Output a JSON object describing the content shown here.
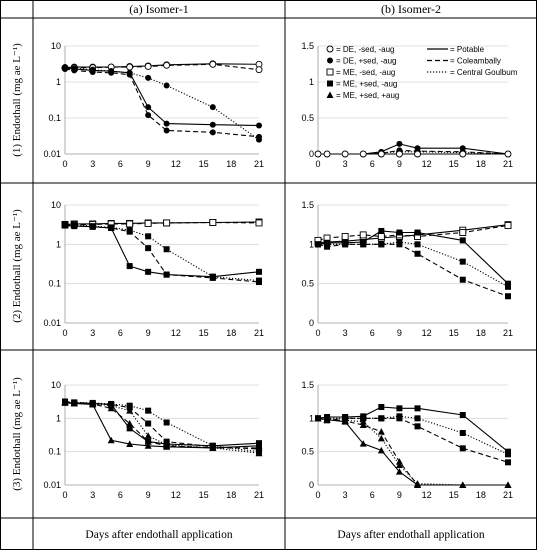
{
  "headers": {
    "col1": "(a)  Isomer-1",
    "col2": "(b)  Isomer-2"
  },
  "row_labels": [
    "(1) Endothall (mg ae L⁻¹)",
    "(2) Endothall (mg ae L⁻¹)",
    "(3) Endothall (mg ae L⁻¹)"
  ],
  "footer": {
    "col1": "Days after endothall application",
    "col2": "Days after endothall application"
  },
  "legend": {
    "markers": [
      {
        "symbol": "open-circle",
        "label": "= DE, -sed, -aug"
      },
      {
        "symbol": "filled-circle",
        "label": "= DE, +sed, -aug"
      },
      {
        "symbol": "open-square",
        "label": "= ME, -sed, -aug"
      },
      {
        "symbol": "filled-square",
        "label": "= ME, +sed, -aug"
      },
      {
        "symbol": "filled-triangle",
        "label": "= ME, +sed, +aug"
      }
    ],
    "lines": [
      {
        "style": "solid",
        "label": "= Potable"
      },
      {
        "style": "dashed",
        "label": "= Coleambally"
      },
      {
        "style": "dotted",
        "label": "= Central Goulbum"
      }
    ]
  },
  "chart_data": [
    {
      "type": "line",
      "panel": "1a",
      "yscale": "log",
      "xlim": [
        0,
        21
      ],
      "ylim": [
        0.01,
        10
      ],
      "xticks": [
        "0",
        "3",
        "6",
        "9",
        "12",
        "15",
        "18",
        "21"
      ],
      "yticks": [
        "0.01",
        "0.1",
        "1",
        "10"
      ],
      "series": [
        {
          "marker": "open-circle",
          "line": "solid",
          "x": [
            0,
            1,
            3,
            5,
            7,
            9,
            11,
            16,
            21
          ],
          "y": [
            2.5,
            2.6,
            2.6,
            2.6,
            2.7,
            2.8,
            3.0,
            3.2,
            3.1
          ]
        },
        {
          "marker": "open-circle",
          "line": "dashed",
          "x": [
            0,
            1,
            3,
            5,
            7,
            9,
            11,
            16,
            21
          ],
          "y": [
            2.4,
            2.5,
            2.5,
            2.6,
            2.6,
            2.7,
            2.9,
            3.1,
            2.2
          ]
        },
        {
          "marker": "filled-circle",
          "line": "solid",
          "x": [
            0,
            1,
            3,
            5,
            7,
            9,
            11,
            16,
            21
          ],
          "y": [
            2.4,
            2.3,
            2.1,
            2.0,
            1.8,
            0.2,
            0.07,
            0.065,
            0.062
          ]
        },
        {
          "marker": "filled-circle",
          "line": "dashed",
          "x": [
            0,
            1,
            3,
            5,
            7,
            9,
            11,
            16,
            21
          ],
          "y": [
            2.3,
            2.1,
            1.9,
            1.8,
            1.6,
            0.12,
            0.045,
            0.04,
            0.03
          ]
        },
        {
          "marker": "filled-circle",
          "line": "dotted",
          "x": [
            0,
            1,
            3,
            5,
            7,
            9,
            11,
            16,
            21
          ],
          "y": [
            2.6,
            2.4,
            2.2,
            2.0,
            1.8,
            1.3,
            0.8,
            0.2,
            0.025
          ]
        }
      ]
    },
    {
      "type": "line",
      "panel": "1b",
      "yscale": "linear",
      "xlim": [
        0,
        21
      ],
      "ylim": [
        0,
        1.5
      ],
      "xticks": [
        "0",
        "3",
        "6",
        "9",
        "12",
        "15",
        "18",
        "21"
      ],
      "yticks": [
        "0",
        "0.5",
        "1",
        "1.5"
      ],
      "series": [
        {
          "marker": "filled-circle",
          "line": "solid",
          "x": [
            0,
            1,
            3,
            5,
            7,
            9,
            11,
            16,
            21
          ],
          "y": [
            0,
            0,
            0,
            0,
            0.03,
            0.14,
            0.08,
            0.08,
            0
          ]
        },
        {
          "marker": "filled-circle",
          "line": "dashed",
          "x": [
            0,
            1,
            3,
            5,
            7,
            9,
            11,
            16,
            21
          ],
          "y": [
            0,
            0,
            0,
            0,
            0.01,
            0.05,
            0.04,
            0.03,
            0
          ]
        },
        {
          "marker": "filled-circle",
          "line": "dotted",
          "x": [
            0,
            1,
            3,
            5,
            7,
            9,
            11,
            16,
            21
          ],
          "y": [
            0,
            0,
            0,
            0,
            0.02,
            0.03,
            0.03,
            0.02,
            0
          ]
        },
        {
          "marker": "open-circle",
          "line": "solid",
          "x": [
            0,
            1,
            3,
            5,
            7,
            9,
            11,
            16,
            21
          ],
          "y": [
            0,
            0,
            0,
            0,
            0,
            0,
            0,
            0,
            0
          ]
        }
      ]
    },
    {
      "type": "line",
      "panel": "2a",
      "yscale": "log",
      "xlim": [
        0,
        21
      ],
      "ylim": [
        0.01,
        10
      ],
      "xticks": [
        "0",
        "3",
        "6",
        "9",
        "12",
        "15",
        "18",
        "21"
      ],
      "yticks": [
        "0.01",
        "0.1",
        "1",
        "10"
      ],
      "series": [
        {
          "marker": "open-square",
          "line": "solid",
          "x": [
            0,
            1,
            3,
            5,
            7,
            9,
            11,
            16,
            21
          ],
          "y": [
            3.2,
            3.3,
            3.3,
            3.4,
            3.4,
            3.5,
            3.5,
            3.6,
            3.7
          ]
        },
        {
          "marker": "open-square",
          "line": "dashed",
          "x": [
            0,
            1,
            3,
            5,
            7,
            9,
            11,
            16,
            21
          ],
          "y": [
            3.1,
            3.2,
            3.2,
            3.3,
            3.3,
            3.4,
            3.5,
            3.6,
            3.5
          ]
        },
        {
          "marker": "filled-square",
          "line": "solid",
          "x": [
            0,
            1,
            3,
            5,
            7,
            9,
            11,
            16,
            21
          ],
          "y": [
            3.0,
            2.9,
            2.8,
            2.6,
            0.28,
            0.2,
            0.17,
            0.15,
            0.2
          ]
        },
        {
          "marker": "filled-square",
          "line": "dashed",
          "x": [
            0,
            1,
            3,
            5,
            7,
            9,
            11,
            16,
            21
          ],
          "y": [
            3.1,
            3.0,
            2.8,
            2.6,
            2.1,
            0.8,
            0.17,
            0.14,
            0.11
          ]
        },
        {
          "marker": "filled-square",
          "line": "dotted",
          "x": [
            0,
            1,
            3,
            5,
            7,
            9,
            11,
            16,
            21
          ],
          "y": [
            3.2,
            3.1,
            2.9,
            2.7,
            2.3,
            1.6,
            0.75,
            0.15,
            0.12
          ]
        }
      ]
    },
    {
      "type": "line",
      "panel": "2b",
      "yscale": "linear",
      "xlim": [
        0,
        21
      ],
      "ylim": [
        0,
        1.5
      ],
      "xticks": [
        "0",
        "3",
        "6",
        "9",
        "12",
        "15",
        "18",
        "21"
      ],
      "yticks": [
        "0",
        "0.5",
        "1",
        "1.5"
      ],
      "series": [
        {
          "marker": "open-square",
          "line": "solid",
          "x": [
            0,
            1,
            3,
            5,
            7,
            9,
            11,
            16,
            21
          ],
          "y": [
            1.02,
            1.03,
            1.04,
            1.06,
            1.08,
            1.1,
            1.12,
            1.18,
            1.25
          ]
        },
        {
          "marker": "open-square",
          "line": "dashed",
          "x": [
            0,
            1,
            3,
            5,
            7,
            9,
            11,
            16,
            21
          ],
          "y": [
            1.05,
            1.08,
            1.1,
            1.12,
            1.1,
            1.12,
            1.1,
            1.15,
            1.24
          ]
        },
        {
          "marker": "filled-square",
          "line": "solid",
          "x": [
            0,
            1,
            3,
            5,
            7,
            9,
            11,
            16,
            21
          ],
          "y": [
            1.0,
            1.02,
            1.02,
            1.03,
            1.17,
            1.15,
            1.15,
            1.05,
            0.5
          ]
        },
        {
          "marker": "filled-square",
          "line": "dashed",
          "x": [
            0,
            1,
            3,
            5,
            7,
            9,
            11,
            16,
            21
          ],
          "y": [
            1.0,
            0.97,
            1.0,
            1.0,
            1.0,
            1.0,
            0.88,
            0.55,
            0.34
          ]
        },
        {
          "marker": "filled-square",
          "line": "dotted",
          "x": [
            0,
            1,
            3,
            5,
            7,
            9,
            11,
            16,
            21
          ],
          "y": [
            1.0,
            1.0,
            1.0,
            1.0,
            1.0,
            1.03,
            1.0,
            0.78,
            0.46
          ]
        }
      ]
    },
    {
      "type": "line",
      "panel": "3a",
      "yscale": "log",
      "xlim": [
        0,
        21
      ],
      "ylim": [
        0.01,
        10
      ],
      "xticks": [
        "0",
        "3",
        "6",
        "9",
        "12",
        "15",
        "18",
        "21"
      ],
      "yticks": [
        "0.01",
        "0.1",
        "1",
        "10"
      ],
      "series": [
        {
          "marker": "filled-square",
          "line": "solid",
          "x": [
            0,
            1,
            3,
            5,
            7,
            9,
            11,
            16,
            21
          ],
          "y": [
            3.0,
            2.9,
            2.8,
            2.6,
            0.5,
            0.2,
            0.17,
            0.15,
            0.18
          ]
        },
        {
          "marker": "filled-square",
          "line": "dashed",
          "x": [
            0,
            1,
            3,
            5,
            7,
            9,
            11,
            16,
            21
          ],
          "y": [
            3.1,
            3.0,
            2.8,
            2.6,
            2.1,
            0.7,
            0.2,
            0.14,
            0.12
          ]
        },
        {
          "marker": "filled-square",
          "line": "dotted",
          "x": [
            0,
            1,
            3,
            5,
            7,
            9,
            11,
            16,
            21
          ],
          "y": [
            3.2,
            3.0,
            2.9,
            2.7,
            2.4,
            1.7,
            0.75,
            0.15,
            0.1
          ]
        },
        {
          "marker": "filled-triangle",
          "line": "solid",
          "x": [
            0,
            1,
            3,
            5,
            7,
            9,
            11,
            16,
            21
          ],
          "y": [
            2.9,
            2.8,
            2.6,
            0.22,
            0.17,
            0.15,
            0.14,
            0.13,
            0.15
          ]
        },
        {
          "marker": "filled-triangle",
          "line": "dashed",
          "x": [
            0,
            1,
            3,
            5,
            7,
            9,
            11,
            16,
            21
          ],
          "y": [
            3.0,
            2.8,
            2.7,
            2.0,
            0.7,
            0.2,
            0.15,
            0.13,
            0.13
          ]
        },
        {
          "marker": "filled-triangle",
          "line": "dotted",
          "x": [
            0,
            1,
            3,
            5,
            7,
            9,
            11,
            16,
            21
          ],
          "y": [
            3.1,
            2.9,
            2.8,
            2.4,
            1.7,
            0.3,
            0.16,
            0.13,
            0.09
          ]
        }
      ]
    },
    {
      "type": "line",
      "panel": "3b",
      "yscale": "linear",
      "xlim": [
        0,
        21
      ],
      "ylim": [
        0,
        1.5
      ],
      "xticks": [
        "0",
        "3",
        "6",
        "9",
        "12",
        "15",
        "18",
        "21"
      ],
      "yticks": [
        "0",
        "0.5",
        "1",
        "1.5"
      ],
      "series": [
        {
          "marker": "filled-square",
          "line": "solid",
          "x": [
            0,
            1,
            3,
            5,
            7,
            9,
            11,
            16,
            21
          ],
          "y": [
            1.0,
            1.02,
            1.02,
            1.03,
            1.17,
            1.15,
            1.15,
            1.05,
            0.5
          ]
        },
        {
          "marker": "filled-square",
          "line": "dashed",
          "x": [
            0,
            1,
            3,
            5,
            7,
            9,
            11,
            16,
            21
          ],
          "y": [
            1.0,
            0.97,
            1.0,
            1.0,
            1.0,
            1.0,
            0.88,
            0.55,
            0.34
          ]
        },
        {
          "marker": "filled-square",
          "line": "dotted",
          "x": [
            0,
            1,
            3,
            5,
            7,
            9,
            11,
            16,
            21
          ],
          "y": [
            1.0,
            1.0,
            1.0,
            1.0,
            1.0,
            1.03,
            1.0,
            0.78,
            0.46
          ]
        },
        {
          "marker": "filled-triangle",
          "line": "solid",
          "x": [
            0,
            1,
            3,
            5,
            7,
            9,
            11,
            16,
            21
          ],
          "y": [
            1.0,
            0.98,
            0.95,
            0.62,
            0.52,
            0.2,
            0,
            0,
            0
          ]
        },
        {
          "marker": "filled-triangle",
          "line": "dashed",
          "x": [
            0,
            1,
            3,
            5,
            7,
            9,
            11,
            16,
            21
          ],
          "y": [
            1.0,
            0.98,
            0.96,
            0.9,
            0.8,
            0.35,
            0,
            0,
            0
          ]
        },
        {
          "marker": "filled-triangle",
          "line": "dotted",
          "x": [
            0,
            1,
            3,
            5,
            7,
            9,
            11,
            16,
            21
          ],
          "y": [
            1.0,
            0.98,
            0.97,
            0.95,
            0.7,
            0.3,
            0.02,
            0,
            0
          ]
        }
      ]
    }
  ]
}
